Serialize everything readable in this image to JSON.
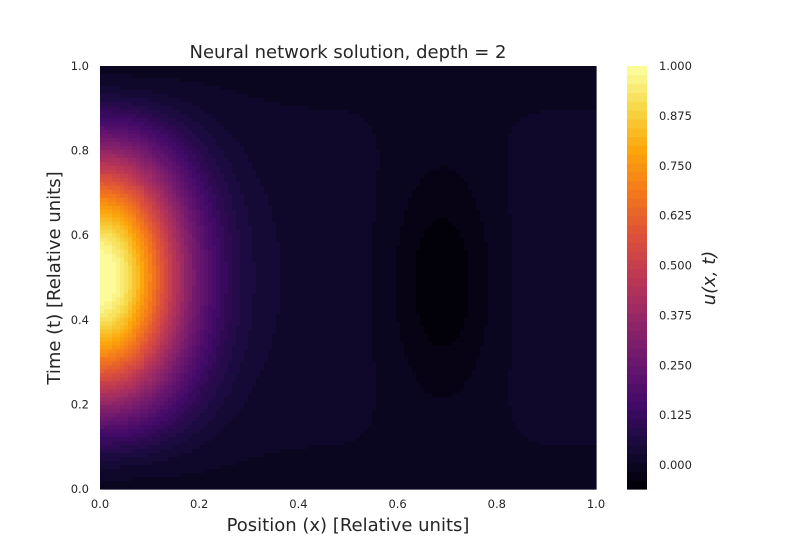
{
  "chart_data": {
    "type": "heatmap",
    "subtype": "filled-contour",
    "title": "Neural network solution, depth = 2",
    "xlabel": "Position (x) [Relative units]",
    "ylabel": "Time (t) [Relative units]",
    "xlim": [
      0.0,
      1.0
    ],
    "ylim": [
      0.0,
      1.0
    ],
    "x_ticks": [
      "0.0",
      "0.2",
      "0.4",
      "0.6",
      "0.8",
      "1.0"
    ],
    "y_ticks": [
      "0.0",
      "0.2",
      "0.4",
      "0.6",
      "0.8",
      "1.0"
    ],
    "colormap": "inferno",
    "colorbar": {
      "label": "u(x, t)",
      "range": [
        -0.06,
        1.0
      ],
      "ticks": [
        "0.000",
        "0.125",
        "0.250",
        "0.375",
        "0.500",
        "0.625",
        "0.750",
        "0.875",
        "1.000"
      ],
      "tick_values": [
        0.0,
        0.125,
        0.25,
        0.375,
        0.5,
        0.625,
        0.75,
        0.875,
        1.0
      ]
    },
    "field": {
      "peak": {
        "x": 0.0,
        "t": 0.5,
        "value": 1.0
      },
      "minimum": {
        "x": 0.69,
        "t": 0.49,
        "value": -0.06
      },
      "description_points": [
        {
          "x": 0.0,
          "t": 0.5,
          "u": 1.0
        },
        {
          "x": 0.1,
          "t": 0.5,
          "u": 0.7
        },
        {
          "x": 0.2,
          "t": 0.5,
          "u": 0.4
        },
        {
          "x": 0.4,
          "t": 0.5,
          "u": 0.08
        },
        {
          "x": 0.5,
          "t": 0.5,
          "u": 0.0
        },
        {
          "x": 0.69,
          "t": 0.5,
          "u": -0.06
        },
        {
          "x": 1.0,
          "t": 0.5,
          "u": 0.01
        }
      ]
    }
  }
}
